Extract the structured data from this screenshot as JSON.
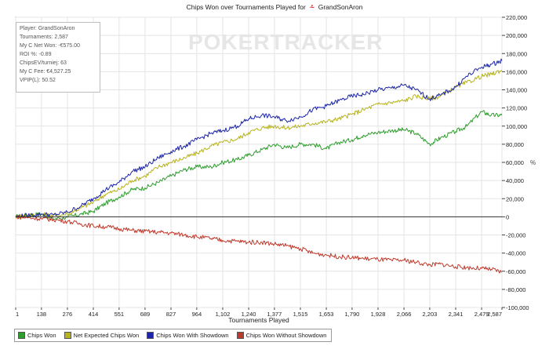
{
  "title": {
    "text": "Chips Won over Tournaments Played for",
    "logo_glyph": "⩪",
    "player": "GrandSonAron"
  },
  "watermark": "POKERTRACKER",
  "stats": {
    "player": "Player: GrandSonAron",
    "tournaments": "Tournaments: 2,587",
    "net_won": "My C Net Won: -€575.00",
    "roi": "ROI %: -0.89",
    "chipsev": "ChipsEV/turniej: 63",
    "fee": "My C Fee: €4,527.25",
    "vpip": "VPIP(L): 50.52"
  },
  "percent_mark": "%",
  "chart_data": {
    "type": "line",
    "xlabel": "Tournaments Played",
    "xlim": [
      1,
      2587
    ],
    "ylim": [
      -100000,
      220000
    ],
    "x_ticks": [
      "1",
      "138",
      "276",
      "414",
      "551",
      "689",
      "827",
      "964",
      "1,102",
      "1,240",
      "1,377",
      "1,515",
      "1,653",
      "1,790",
      "1,928",
      "2,066",
      "2,203",
      "2,341",
      "2,479",
      "2,587"
    ],
    "y_ticks": [
      "220,000",
      "200,000",
      "180,000",
      "160,000",
      "140,000",
      "120,000",
      "100,000",
      "80,000",
      "60,000",
      "40,000",
      "20,000",
      "0",
      "-20,000",
      "-40,000",
      "-60,000",
      "-80,000",
      "-100,000"
    ],
    "grid": true,
    "legend_position": "bottom",
    "series": [
      {
        "name": "Chips Won",
        "color": "#2e9d2e",
        "points": [
          [
            1,
            0
          ],
          [
            60,
            2000
          ],
          [
            138,
            3000
          ],
          [
            200,
            -2000
          ],
          [
            276,
            -500
          ],
          [
            350,
            3000
          ],
          [
            414,
            6000
          ],
          [
            480,
            15000
          ],
          [
            551,
            22000
          ],
          [
            620,
            30000
          ],
          [
            689,
            32000
          ],
          [
            760,
            38000
          ],
          [
            827,
            45000
          ],
          [
            900,
            52000
          ],
          [
            964,
            55000
          ],
          [
            1040,
            55000
          ],
          [
            1102,
            60000
          ],
          [
            1180,
            63000
          ],
          [
            1240,
            68000
          ],
          [
            1310,
            74000
          ],
          [
            1377,
            80000
          ],
          [
            1440,
            76000
          ],
          [
            1515,
            80000
          ],
          [
            1580,
            80000
          ],
          [
            1653,
            75000
          ],
          [
            1720,
            82000
          ],
          [
            1790,
            85000
          ],
          [
            1850,
            90000
          ],
          [
            1928,
            93000
          ],
          [
            2000,
            95000
          ],
          [
            2066,
            96000
          ],
          [
            2130,
            92000
          ],
          [
            2203,
            80000
          ],
          [
            2260,
            87000
          ],
          [
            2341,
            94000
          ],
          [
            2400,
            100000
          ],
          [
            2479,
            116000
          ],
          [
            2530,
            112000
          ],
          [
            2587,
            112000
          ]
        ]
      },
      {
        "name": "Net Expected Chips Won",
        "color": "#b7b31e",
        "points": [
          [
            1,
            0
          ],
          [
            60,
            1500
          ],
          [
            138,
            3000
          ],
          [
            200,
            1000
          ],
          [
            276,
            3000
          ],
          [
            350,
            10000
          ],
          [
            414,
            16000
          ],
          [
            480,
            25000
          ],
          [
            551,
            30000
          ],
          [
            620,
            40000
          ],
          [
            689,
            45000
          ],
          [
            760,
            55000
          ],
          [
            827,
            60000
          ],
          [
            900,
            65000
          ],
          [
            964,
            70000
          ],
          [
            1040,
            78000
          ],
          [
            1102,
            82000
          ],
          [
            1180,
            86000
          ],
          [
            1240,
            93000
          ],
          [
            1310,
            98000
          ],
          [
            1377,
            100000
          ],
          [
            1440,
            98000
          ],
          [
            1515,
            100000
          ],
          [
            1580,
            103000
          ],
          [
            1653,
            105000
          ],
          [
            1720,
            108000
          ],
          [
            1790,
            113000
          ],
          [
            1850,
            118000
          ],
          [
            1928,
            124000
          ],
          [
            2000,
            126000
          ],
          [
            2066,
            128000
          ],
          [
            2130,
            133000
          ],
          [
            2203,
            130000
          ],
          [
            2260,
            133000
          ],
          [
            2341,
            143000
          ],
          [
            2400,
            148000
          ],
          [
            2479,
            155000
          ],
          [
            2530,
            157000
          ],
          [
            2587,
            162000
          ]
        ]
      },
      {
        "name": "Chips Won With Showdown",
        "color": "#1d26a8",
        "points": [
          [
            1,
            0
          ],
          [
            60,
            1500
          ],
          [
            138,
            3000
          ],
          [
            200,
            2000
          ],
          [
            276,
            5000
          ],
          [
            350,
            12000
          ],
          [
            414,
            20000
          ],
          [
            480,
            30000
          ],
          [
            551,
            38000
          ],
          [
            620,
            50000
          ],
          [
            689,
            55000
          ],
          [
            760,
            65000
          ],
          [
            827,
            72000
          ],
          [
            900,
            78000
          ],
          [
            964,
            85000
          ],
          [
            1040,
            92000
          ],
          [
            1102,
            95000
          ],
          [
            1180,
            100000
          ],
          [
            1240,
            108000
          ],
          [
            1310,
            112000
          ],
          [
            1377,
            110000
          ],
          [
            1440,
            106000
          ],
          [
            1515,
            110000
          ],
          [
            1580,
            118000
          ],
          [
            1653,
            122000
          ],
          [
            1720,
            128000
          ],
          [
            1790,
            133000
          ],
          [
            1850,
            135000
          ],
          [
            1928,
            140000
          ],
          [
            2000,
            142000
          ],
          [
            2066,
            145000
          ],
          [
            2130,
            140000
          ],
          [
            2203,
            130000
          ],
          [
            2260,
            134000
          ],
          [
            2341,
            143000
          ],
          [
            2400,
            155000
          ],
          [
            2479,
            165000
          ],
          [
            2530,
            168000
          ],
          [
            2587,
            172000
          ]
        ]
      },
      {
        "name": "Chips Won Without Showdown",
        "color": "#c0392b",
        "points": [
          [
            1,
            0
          ],
          [
            60,
            -1000
          ],
          [
            138,
            -2000
          ],
          [
            200,
            -3000
          ],
          [
            276,
            -5000
          ],
          [
            350,
            -8000
          ],
          [
            414,
            -10000
          ],
          [
            480,
            -11000
          ],
          [
            551,
            -13000
          ],
          [
            620,
            -15000
          ],
          [
            689,
            -16000
          ],
          [
            760,
            -17000
          ],
          [
            827,
            -18000
          ],
          [
            900,
            -20000
          ],
          [
            964,
            -22000
          ],
          [
            1040,
            -24000
          ],
          [
            1102,
            -26000
          ],
          [
            1180,
            -27000
          ],
          [
            1240,
            -28000
          ],
          [
            1310,
            -28000
          ],
          [
            1377,
            -30000
          ],
          [
            1440,
            -32000
          ],
          [
            1515,
            -35000
          ],
          [
            1580,
            -40000
          ],
          [
            1653,
            -42000
          ],
          [
            1720,
            -44000
          ],
          [
            1790,
            -45000
          ],
          [
            1850,
            -46000
          ],
          [
            1928,
            -47000
          ],
          [
            2000,
            -48000
          ],
          [
            2066,
            -48000
          ],
          [
            2130,
            -50000
          ],
          [
            2203,
            -53000
          ],
          [
            2260,
            -52000
          ],
          [
            2341,
            -55000
          ],
          [
            2400,
            -56000
          ],
          [
            2479,
            -57000
          ],
          [
            2530,
            -58000
          ],
          [
            2587,
            -61000
          ]
        ]
      }
    ]
  }
}
